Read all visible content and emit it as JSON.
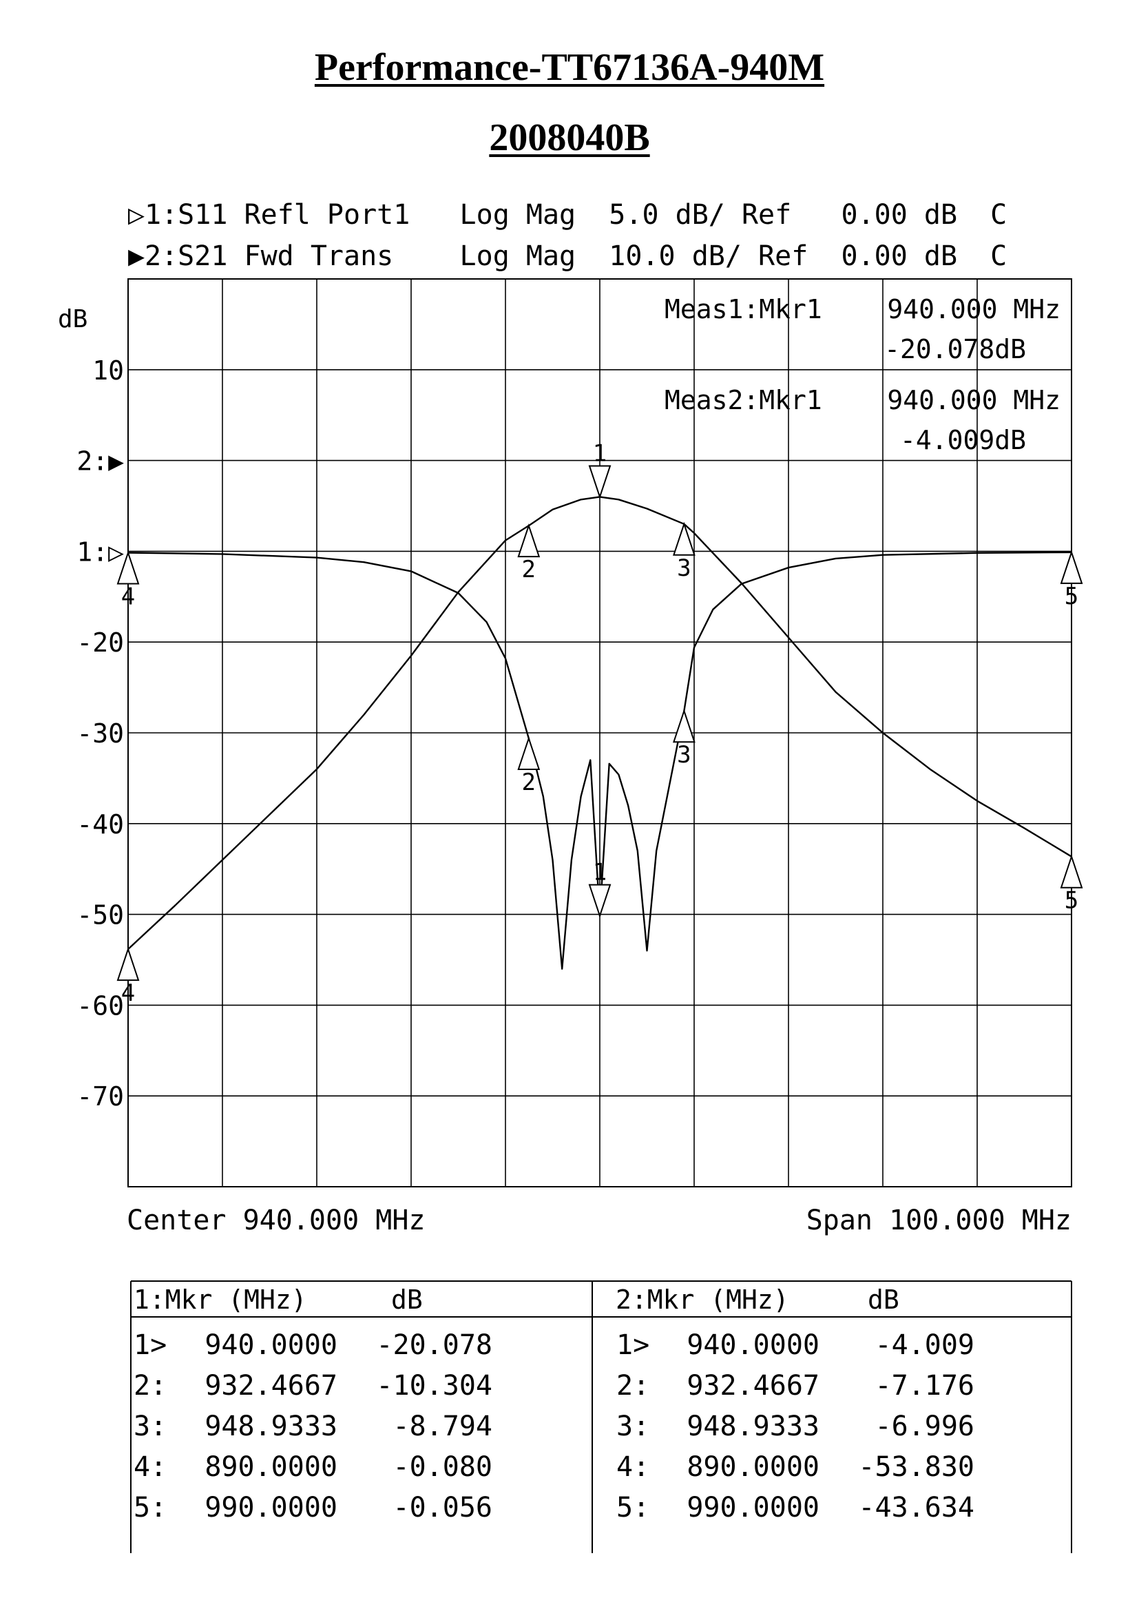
{
  "page": {
    "title": "Performance-TT67136A-940M",
    "subtitle": "2008040B"
  },
  "header_lines": [
    {
      "marker": "▷",
      "text": "1:S11 Refl Port1   Log Mag  5.0 dB/ Ref   0.00 dB  C"
    },
    {
      "marker": "▶",
      "text": "2:S21 Fwd Trans    Log Mag  10.0 dB/ Ref  0.00 dB  C"
    }
  ],
  "colors": {
    "background": "#ffffff",
    "ink": "#000000"
  },
  "chart_data": {
    "type": "line",
    "ylabel": "dB",
    "x_unit": "MHz",
    "xlim": [
      890,
      990
    ],
    "x_divisions": 10,
    "grid": true,
    "footer_left": "Center 940.000 MHz",
    "footer_right": "Span 100.000 MHz",
    "y_tick_labels": [
      {
        "label": "10",
        "gy": 1
      },
      {
        "label": "2:▶",
        "gy": 2
      },
      {
        "label": "1:▷",
        "gy": 3
      },
      {
        "label": "-20",
        "gy": 4
      },
      {
        "label": "-30",
        "gy": 5
      },
      {
        "label": "-40",
        "gy": 6
      },
      {
        "label": "-50",
        "gy": 7
      },
      {
        "label": "-60",
        "gy": 8
      },
      {
        "label": "-70",
        "gy": 9
      }
    ],
    "meas_readouts": [
      {
        "label": "Meas1:Mkr1",
        "freq": "940.000 MHz",
        "value": "-20.078dB"
      },
      {
        "label": "Meas2:Mkr1",
        "freq": "940.000 MHz",
        "value": "-4.009dB"
      }
    ],
    "series": [
      {
        "trace": "S11",
        "ref_db": 0,
        "db_per_div": 5,
        "ref_div": 3,
        "x": [
          890,
          900,
          910,
          915,
          920,
          925,
          928,
          930,
          932.4667,
          934,
          935,
          936,
          937,
          938,
          939,
          940,
          941,
          942,
          943,
          944,
          945,
          946,
          948.9333,
          950,
          952,
          955,
          960,
          965,
          970,
          980,
          990
        ],
        "y": [
          -0.08,
          -0.15,
          -0.35,
          -0.6,
          -1.1,
          -2.3,
          -3.9,
          -5.9,
          -10.304,
          -13.5,
          -17.0,
          -23.0,
          -17.0,
          -13.5,
          -11.5,
          -20.078,
          -11.7,
          -12.3,
          -14.0,
          -16.5,
          -22.0,
          -16.5,
          -8.794,
          -5.3,
          -3.2,
          -1.8,
          -0.9,
          -0.4,
          -0.2,
          -0.09,
          -0.056
        ]
      },
      {
        "trace": "S21",
        "ref_db": 0,
        "db_per_div": 10,
        "ref_div": 2,
        "x": [
          890,
          895,
          900,
          905,
          910,
          915,
          920,
          925,
          930,
          932.4667,
          935,
          938,
          940,
          942,
          945,
          948.9333,
          950,
          955,
          960,
          965,
          970,
          975,
          980,
          985,
          990
        ],
        "y": [
          -53.83,
          -49.0,
          -44.0,
          -39.0,
          -34.0,
          -28.0,
          -21.5,
          -14.5,
          -8.8,
          -7.176,
          -5.4,
          -4.3,
          -4.009,
          -4.3,
          -5.3,
          -6.996,
          -8.0,
          -13.5,
          -19.5,
          -25.5,
          -30.0,
          -34.0,
          -37.5,
          -40.5,
          -43.634
        ]
      }
    ],
    "markers": [
      {
        "trace": 1,
        "id": "1",
        "x": 940.0,
        "y": -20.078,
        "dir": "down",
        "label_pos": "above"
      },
      {
        "trace": 1,
        "id": "2",
        "x": 932.4667,
        "y": -10.304,
        "dir": "up",
        "label_pos": "below"
      },
      {
        "trace": 1,
        "id": "3",
        "x": 948.9333,
        "y": -8.794,
        "dir": "up",
        "label_pos": "below"
      },
      {
        "trace": 1,
        "id": "4",
        "x": 890.0,
        "y": -0.08,
        "dir": "up",
        "label_pos": "below"
      },
      {
        "trace": 1,
        "id": "5",
        "x": 990.0,
        "y": -0.056,
        "dir": "up",
        "label_pos": "below"
      },
      {
        "trace": 2,
        "id": "1",
        "x": 940.0,
        "y": -4.009,
        "dir": "down",
        "label_pos": "above"
      },
      {
        "trace": 2,
        "id": "2",
        "x": 932.4667,
        "y": -7.176,
        "dir": "up",
        "label_pos": "below"
      },
      {
        "trace": 2,
        "id": "3",
        "x": 948.9333,
        "y": -6.996,
        "dir": "up",
        "label_pos": "below"
      },
      {
        "trace": 2,
        "id": "4",
        "x": 890.0,
        "y": -53.83,
        "dir": "up",
        "label_pos": "below"
      },
      {
        "trace": 2,
        "id": "5",
        "x": 990.0,
        "y": -43.634,
        "dir": "up",
        "label_pos": "below"
      }
    ]
  },
  "marker_table": [
    {
      "header_mkr": "1:Mkr (MHz)",
      "header_db": "dB",
      "rows": [
        {
          "idx": "1>",
          "freq": "940.0000",
          "db": "-20.078"
        },
        {
          "idx": "2:",
          "freq": "932.4667",
          "db": "-10.304"
        },
        {
          "idx": "3:",
          "freq": "948.9333",
          "db": "-8.794"
        },
        {
          "idx": "4:",
          "freq": "890.0000",
          "db": "-0.080"
        },
        {
          "idx": "5:",
          "freq": "990.0000",
          "db": "-0.056"
        }
      ]
    },
    {
      "header_mkr": "2:Mkr (MHz)",
      "header_db": "dB",
      "rows": [
        {
          "idx": "1>",
          "freq": "940.0000",
          "db": "-4.009"
        },
        {
          "idx": "2:",
          "freq": "932.4667",
          "db": "-7.176"
        },
        {
          "idx": "3:",
          "freq": "948.9333",
          "db": "-6.996"
        },
        {
          "idx": "4:",
          "freq": "890.0000",
          "db": "-53.830"
        },
        {
          "idx": "5:",
          "freq": "990.0000",
          "db": "-43.634"
        }
      ]
    }
  ]
}
